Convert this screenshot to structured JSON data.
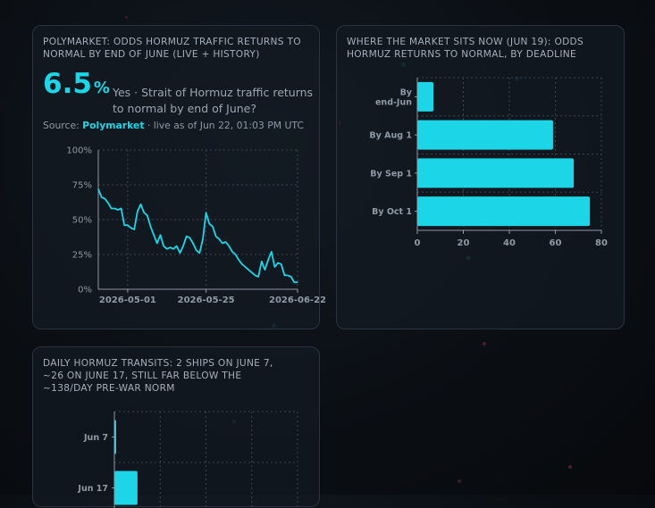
{
  "card1": {
    "title": "POLYMARKET: ODDS HORMUZ TRAFFIC RETURNS TO NORMAL BY END OF JUNE (LIVE + HISTORY)",
    "big_value": "6.5",
    "big_unit": "%",
    "description": "Yes · Strait of Hormuz traffic returns to normal by end of June?",
    "source_label": "Source:",
    "source_name": "Polymarket",
    "source_suffix": "· live as of Jun 22, 01:03 PM UTC"
  },
  "card2": {
    "title": "WHERE THE MARKET SITS NOW (JUN 19): ODDS HORMUZ RETURNS TO NORMAL, BY DEADLINE"
  },
  "card3": {
    "title": "DAILY HORMUZ TRANSITS: 2 SHIPS ON JUNE 7, ~26 ON JUNE 17, STILL FAR BELOW THE ~138/DAY PRE-WAR NORM"
  },
  "colors": {
    "accent": "#1cd6e8",
    "grid": "#3a4652",
    "axis": "#8e9aa6"
  },
  "chart_data": [
    {
      "type": "line",
      "x_tick_labels": [
        "2026-05-01",
        "2026-05-25",
        "2026-06-22"
      ],
      "y_tick_labels": [
        "0%",
        "25%",
        "50%",
        "75%",
        "100%"
      ],
      "ylim": [
        0,
        100
      ],
      "x_range": [
        "2026-04-22",
        "2026-06-22"
      ],
      "grid": true,
      "series": [
        {
          "x": [
            "2026-04-22",
            "2026-04-23",
            "2026-04-24",
            "2026-04-25",
            "2026-04-26",
            "2026-04-27",
            "2026-04-28",
            "2026-04-29",
            "2026-04-30",
            "2026-05-01",
            "2026-05-02",
            "2026-05-03",
            "2026-05-04",
            "2026-05-05",
            "2026-05-06",
            "2026-05-07",
            "2026-05-08",
            "2026-05-09",
            "2026-05-10",
            "2026-05-11",
            "2026-05-12",
            "2026-05-13",
            "2026-05-14",
            "2026-05-15",
            "2026-05-16",
            "2026-05-17",
            "2026-05-18",
            "2026-05-19",
            "2026-05-20",
            "2026-05-21",
            "2026-05-22",
            "2026-05-23",
            "2026-05-24",
            "2026-05-25",
            "2026-05-26",
            "2026-05-27",
            "2026-05-28",
            "2026-05-29",
            "2026-05-30",
            "2026-05-31",
            "2026-06-01",
            "2026-06-02",
            "2026-06-03",
            "2026-06-04",
            "2026-06-05",
            "2026-06-06",
            "2026-06-07",
            "2026-06-08",
            "2026-06-09",
            "2026-06-10",
            "2026-06-11",
            "2026-06-12",
            "2026-06-13",
            "2026-06-14",
            "2026-06-15",
            "2026-06-16",
            "2026-06-17",
            "2026-06-18",
            "2026-06-19",
            "2026-06-20",
            "2026-06-21",
            "2026-06-22"
          ],
          "values": [
            72,
            66,
            65,
            62,
            58,
            58,
            57,
            58,
            46,
            46,
            44,
            43,
            56,
            61,
            55,
            53,
            45,
            39,
            33,
            39,
            31,
            29,
            30,
            29,
            31,
            26,
            31,
            38,
            37,
            33,
            28,
            26,
            36,
            55,
            47,
            45,
            38,
            36,
            33,
            34,
            31,
            27,
            25,
            21,
            18,
            16,
            14,
            12,
            10,
            9,
            20,
            14,
            21,
            27,
            16,
            19,
            18,
            10,
            10,
            9,
            5,
            5
          ]
        }
      ]
    },
    {
      "type": "bar",
      "orientation": "horizontal",
      "categories": [
        "By end-Jun",
        "By Aug 1",
        "By Sep 1",
        "By Oct 1"
      ],
      "values": [
        7,
        59,
        68,
        75
      ],
      "xlim": [
        0,
        80
      ],
      "x_ticks": [
        0,
        20,
        40,
        60,
        80
      ],
      "grid": true
    },
    {
      "type": "bar",
      "orientation": "horizontal",
      "categories": [
        "Jun 7",
        "Jun 17"
      ],
      "values": [
        2,
        26
      ],
      "grid": true
    }
  ]
}
